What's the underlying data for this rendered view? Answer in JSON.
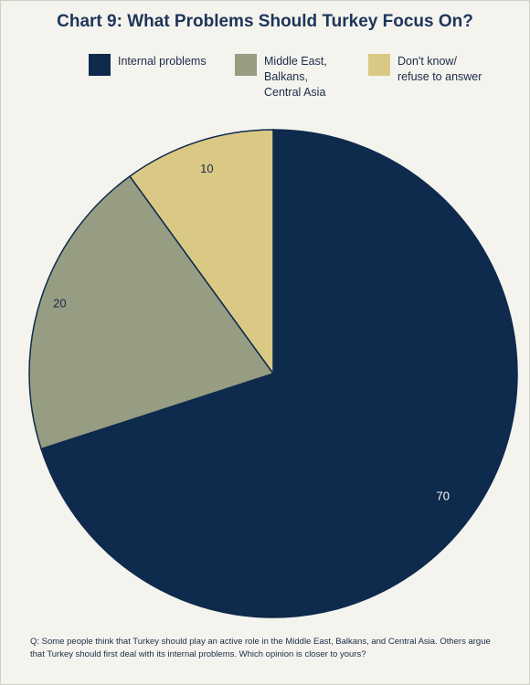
{
  "chart_data": {
    "type": "pie",
    "title": "Chart 9: What Problems Should Turkey Focus On?",
    "categories": [
      "Internal problems",
      "Middle East,\nBalkans,\nCentral Asia",
      "Don't know/\nrefuse to answer"
    ],
    "values": [
      70,
      20,
      10
    ],
    "colors": [
      "#0e2a4d",
      "#969d82",
      "#d9c985"
    ],
    "legend": "top",
    "data_labels": [
      "70",
      "20",
      "10"
    ]
  },
  "footnote": "Q: Some people think that Turkey should play an active role in the Middle East, Balkans, and Central Asia. Others argue that Turkey should first deal with its internal problems. Which opinion is closer to yours?"
}
